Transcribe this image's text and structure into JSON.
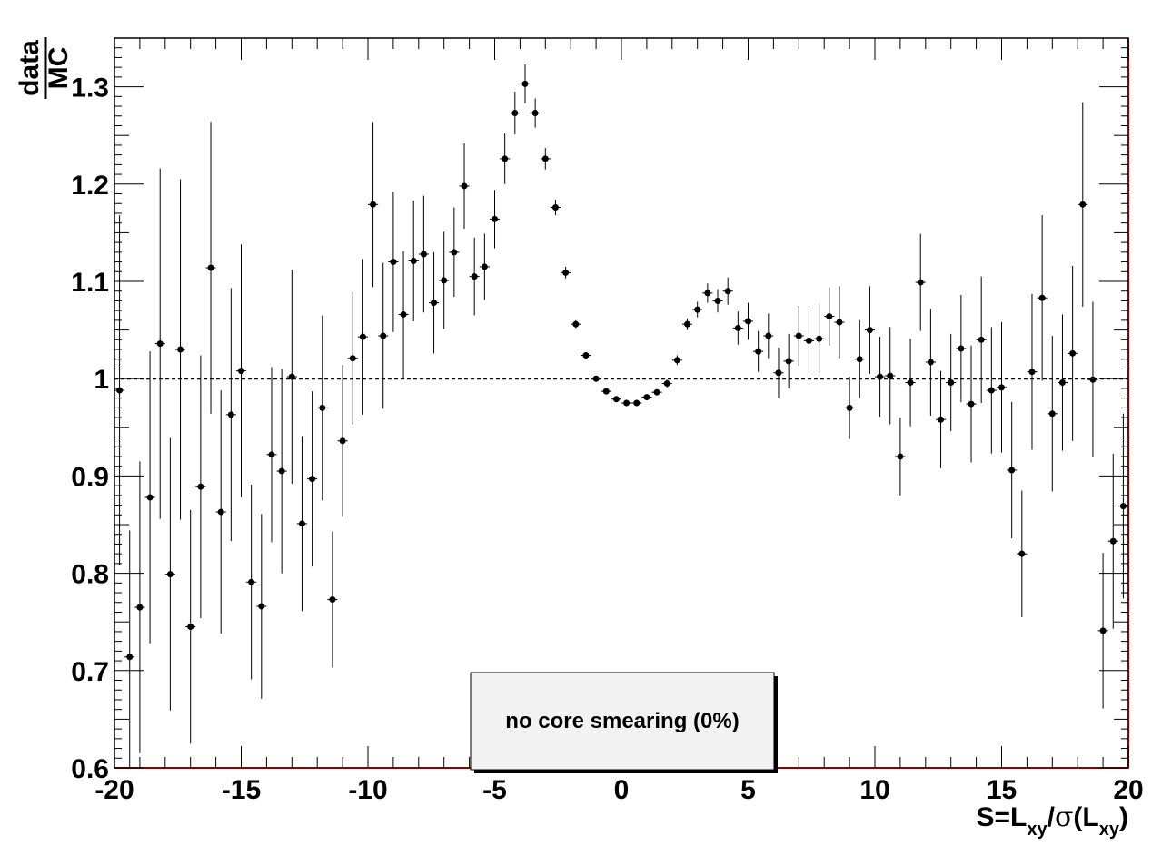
{
  "chart_data": {
    "type": "scatter",
    "ylabel": {
      "numerator": "data",
      "denominator": "MC"
    },
    "xlabel": {
      "prefix": "S=L",
      "sub1": "xy",
      "middle": "/",
      "sigma": "σ",
      "open": "(L",
      "sub2": "xy",
      "close": ")"
    },
    "xlim": [
      -20,
      20
    ],
    "ylim": [
      0.6,
      1.35
    ],
    "xticks": [
      -20,
      -15,
      -10,
      -5,
      0,
      5,
      10,
      15,
      20
    ],
    "xtick_labels": [
      "-20",
      "-15",
      "-10",
      "-5",
      "0",
      "5",
      "10",
      "15",
      "20"
    ],
    "yticks": [
      0.6,
      0.7,
      0.8,
      0.9,
      1.0,
      1.1,
      1.2,
      1.3
    ],
    "ytick_labels": [
      "0.6",
      "0.7",
      "0.8",
      "0.9",
      "1",
      "1.1",
      "1.2",
      "1.3"
    ],
    "reference_line": 1.0,
    "legend": {
      "text": "no core smearing (0%)",
      "placement": "bottom-center"
    },
    "colors": {
      "frame": "#8b0000",
      "markers": "#000000",
      "legend_fill": "#f2f2f2"
    },
    "series": [
      {
        "x": [
          -19.8,
          -19.4,
          -19.0,
          -18.6,
          -18.2,
          -17.8,
          -17.4,
          -17.0,
          -16.6,
          -16.2,
          -15.8,
          -15.4,
          -15.0,
          -14.6,
          -14.2,
          -13.8,
          -13.4,
          -13.0,
          -12.6,
          -12.2,
          -11.8,
          -11.4,
          -11.0,
          -10.6,
          -10.2,
          -9.8,
          -9.4,
          -9.0,
          -8.6,
          -8.2,
          -7.8,
          -7.4,
          -7.0,
          -6.6,
          -6.2,
          -5.8,
          -5.4,
          -5.0,
          -4.6,
          -4.2,
          -3.8,
          -3.4,
          -3.0,
          -2.6,
          -2.2,
          -1.8,
          -1.4,
          -1.0,
          -0.6,
          -0.2,
          0.2,
          0.6,
          1.0,
          1.4,
          1.8,
          2.2,
          2.6,
          3.0,
          3.4,
          3.8,
          4.2,
          4.6,
          5.0,
          5.4,
          5.8,
          6.2,
          6.6,
          7.0,
          7.4,
          7.8,
          8.2,
          8.6,
          9.0,
          9.4,
          9.8,
          10.2,
          10.6,
          11.0,
          11.4,
          11.8,
          12.2,
          12.6,
          13.0,
          13.4,
          13.8,
          14.2,
          14.6,
          15.0,
          15.4,
          15.8,
          16.2,
          16.6,
          17.0,
          17.4,
          17.8,
          18.2,
          18.6,
          19.0,
          19.4,
          19.8
        ],
        "y": [
          0.988,
          0.714,
          0.765,
          0.878,
          1.036,
          0.799,
          1.03,
          0.745,
          0.889,
          1.114,
          0.863,
          0.963,
          1.008,
          0.791,
          0.766,
          0.922,
          0.905,
          1.002,
          0.851,
          0.897,
          0.97,
          0.773,
          0.936,
          1.021,
          1.043,
          1.179,
          1.044,
          1.12,
          1.066,
          1.121,
          1.128,
          1.078,
          1.101,
          1.13,
          1.198,
          1.105,
          1.115,
          1.164,
          1.226,
          1.273,
          1.303,
          1.273,
          1.226,
          1.176,
          1.109,
          1.056,
          1.024,
          1.0,
          0.987,
          0.979,
          0.975,
          0.975,
          0.981,
          0.986,
          0.995,
          1.019,
          1.056,
          1.071,
          1.088,
          1.08,
          1.09,
          1.052,
          1.059,
          1.028,
          1.044,
          1.006,
          1.018,
          1.044,
          1.039,
          1.041,
          1.064,
          1.058,
          0.97,
          1.02,
          1.05,
          1.002,
          1.003,
          0.92,
          0.996,
          1.099,
          1.017,
          0.958,
          0.996,
          1.031,
          0.974,
          1.04,
          0.988,
          0.991,
          0.906,
          0.82,
          1.007,
          1.083,
          0.964,
          0.996,
          1.026,
          1.179,
          0.999,
          0.741,
          0.833,
          0.869
        ],
        "yerr": [
          0.18,
          0.13,
          0.15,
          0.15,
          0.18,
          0.14,
          0.175,
          0.12,
          0.135,
          0.15,
          0.125,
          0.13,
          0.13,
          0.1,
          0.095,
          0.09,
          0.105,
          0.11,
          0.09,
          0.09,
          0.095,
          0.07,
          0.078,
          0.068,
          0.08,
          0.085,
          0.075,
          0.072,
          0.065,
          0.062,
          0.06,
          0.052,
          0.05,
          0.046,
          0.044,
          0.04,
          0.034,
          0.03,
          0.026,
          0.022,
          0.02,
          0.015,
          0.011,
          0.008,
          0.006,
          0.004,
          0.003,
          0.002,
          0.002,
          0.002,
          0.002,
          0.002,
          0.002,
          0.003,
          0.004,
          0.005,
          0.006,
          0.008,
          0.01,
          0.012,
          0.014,
          0.017,
          0.019,
          0.021,
          0.023,
          0.026,
          0.028,
          0.031,
          0.033,
          0.035,
          0.03,
          0.037,
          0.032,
          0.04,
          0.045,
          0.041,
          0.05,
          0.04,
          0.045,
          0.05,
          0.055,
          0.05,
          0.05,
          0.055,
          0.06,
          0.065,
          0.065,
          0.067,
          0.07,
          0.065,
          0.08,
          0.085,
          0.08,
          0.07,
          0.09,
          0.105,
          0.08,
          0.08,
          0.09,
          0.095
        ]
      }
    ]
  }
}
